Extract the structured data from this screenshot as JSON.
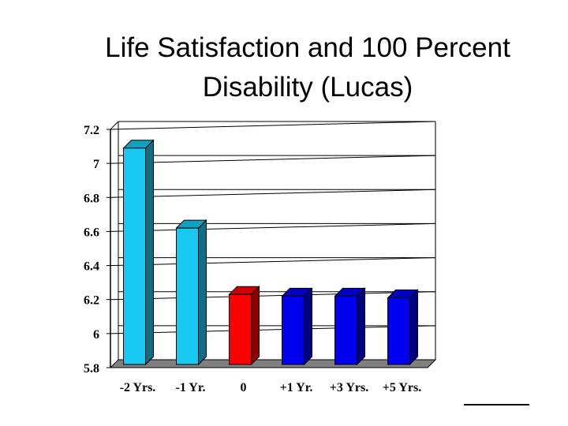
{
  "chart_data": {
    "type": "bar",
    "title": "Life Satisfaction and 100 Percent Disability (Lucas)",
    "categories": [
      "-2 Yrs.",
      "-1 Yr.",
      "0",
      "+1 Yr.",
      "+3 Yrs.",
      "+5 Yrs."
    ],
    "values": [
      7.09,
      6.62,
      6.23,
      6.22,
      6.22,
      6.21
    ],
    "colors": [
      "#18c8f0",
      "#18c8f0",
      "#ff0000",
      "#0000ee",
      "#0000ee",
      "#0000ee"
    ],
    "ylim": [
      5.8,
      7.2
    ],
    "yticks": [
      "5.8",
      "6",
      "6.2",
      "6.4",
      "6.6",
      "6.8",
      "7",
      "7.2"
    ],
    "xlabel": "",
    "ylabel": "",
    "grid": true,
    "style": "3d-columns"
  }
}
